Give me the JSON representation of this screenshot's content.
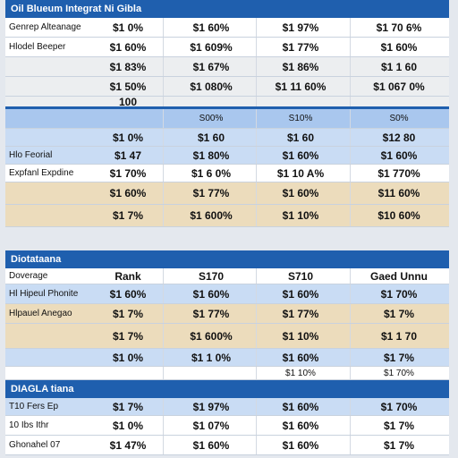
{
  "sections": [
    {
      "title": "Oil Blueum Integrat Ni Gibla",
      "rows": [
        {
          "cells": [
            "Genrep Alteanage",
            "$1 0%",
            "$1 60%",
            "$1 97%",
            "$1 70 6%"
          ]
        },
        {
          "cells": [
            "Hlodel Beeper",
            "$1 60%",
            "$1 609%",
            "$1 77%",
            "$1 60%"
          ]
        },
        {
          "cells": [
            null,
            "$1 83%",
            "$1 67%",
            "$1 86%",
            "$1 1 60"
          ]
        },
        {
          "cells": [
            null,
            "$1 50%",
            "$1 080%",
            "$1 11 60%",
            "$1 067 0%"
          ]
        },
        {
          "cells": [
            null,
            "100",
            null,
            null,
            null
          ]
        }
      ]
    },
    {
      "rows": [
        {
          "cells": [
            null,
            null,
            "S00%",
            "S10%",
            "S0%"
          ]
        },
        {
          "cells": [
            null,
            "$1 0%",
            "$1 60",
            "$1 60",
            "$12 80"
          ]
        },
        {
          "cells": [
            "Hlo Feorial",
            "$1 47",
            "$1 80%",
            "$1 60%",
            "$1 60%"
          ]
        },
        {
          "cells": [
            "Expfanl Expdine",
            "$1 70%",
            "$1 6 0%",
            "$1 10 A%",
            "$1 770%"
          ]
        },
        {
          "cells": [
            null,
            "$1 60%",
            "$1 77%",
            "$1 60%",
            "$11 60%"
          ]
        },
        {
          "cells": [
            null,
            "$1 7%",
            "$1 600%",
            "$1 10%",
            "$10 60%"
          ]
        }
      ]
    },
    {
      "title": "Diotataana",
      "rows": [
        {
          "cells": [
            "Doverage",
            "Rank",
            "S170",
            "S710",
            "Gaed Unnu"
          ]
        },
        {
          "cells": [
            "Hl Hipeul Phonite",
            "$1 60%",
            "$1 60%",
            "$1 60%",
            "$1 70%"
          ]
        },
        {
          "cells": [
            "Hlpauel Anegao",
            "$1 7%",
            "$1 77%",
            "$1 77%",
            "$1 7%"
          ]
        },
        {
          "cells": [
            null,
            "$1 7%",
            "$1 600%",
            "$1 10%",
            "$1 1 70"
          ]
        },
        {
          "cells": [
            null,
            "$1 0%",
            "$1 1 0%",
            "$1 60%",
            "$1 7%"
          ]
        },
        {
          "cells": [
            null,
            null,
            null,
            "$1 10%",
            "$1 70%"
          ]
        }
      ]
    },
    {
      "title": "DIAGLA tiana",
      "rows": [
        {
          "cells": [
            "T10 Fers Ep",
            "$1 7%",
            "$1 97%",
            "$1 60%",
            "$1 70%"
          ]
        },
        {
          "cells": [
            "10 Ibs Ithr",
            "$1 0%",
            "$1 07%",
            "$1 60%",
            "$1 7%"
          ]
        },
        {
          "cells": [
            "Ghonahel 07",
            "$1 47%",
            "$1 60%",
            "$1 60%",
            "$1 7%"
          ]
        }
      ]
    }
  ]
}
